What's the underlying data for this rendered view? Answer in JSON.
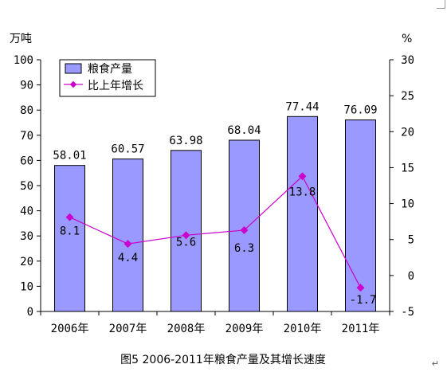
{
  "chart_data": {
    "type": "bar",
    "categories": [
      "2006年",
      "2007年",
      "2008年",
      "2009年",
      "2010年",
      "2011年"
    ],
    "series": [
      {
        "name": "粮食产量",
        "type": "bar",
        "axis": "left",
        "values": [
          58.01,
          60.57,
          63.98,
          68.04,
          77.44,
          76.09
        ],
        "labels": [
          "58.01",
          "60.57",
          "63.98",
          "68.04",
          "77.44",
          "76.09"
        ],
        "color": "#9999ff"
      },
      {
        "name": "比上年增长",
        "type": "line",
        "axis": "right",
        "values": [
          8.1,
          4.4,
          5.6,
          6.3,
          13.8,
          -1.7
        ],
        "labels": [
          "8.1",
          "4.4",
          "5.6",
          "6.3",
          "13.8",
          "-1.7"
        ],
        "color": "#cc00cc"
      }
    ],
    "y_left": {
      "unit": "万吨",
      "min": 0,
      "max": 100,
      "ticks": [
        "0",
        "10",
        "20",
        "30",
        "40",
        "50",
        "60",
        "70",
        "80",
        "90",
        "100"
      ]
    },
    "y_right": {
      "unit": "%",
      "min": -5,
      "max": 30,
      "ticks": [
        "-5",
        "0",
        "5",
        "10",
        "15",
        "20",
        "25",
        "30"
      ]
    },
    "caption": "图5  2006-2011年粮食产量及其增长速度",
    "legend_position": "top-left",
    "grid": false
  },
  "page": {
    "paragraph_mark": "↵"
  }
}
